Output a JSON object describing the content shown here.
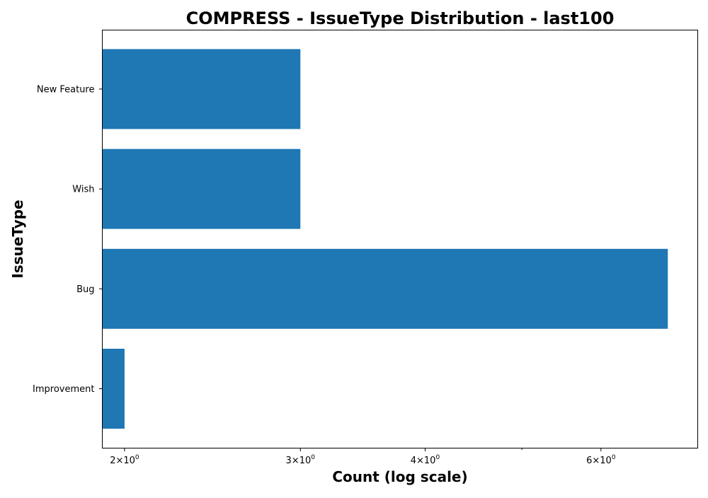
{
  "chart_data": {
    "type": "bar",
    "orientation": "horizontal",
    "title": "COMPRESS - IssueType Distribution - last100",
    "xlabel": "Count (log scale)",
    "ylabel": "IssueType",
    "x_scale": "log",
    "xlim": [
      1.9,
      7.5
    ],
    "x_major_ticks": [
      {
        "value": 2,
        "base": "2",
        "exponent": "0"
      },
      {
        "value": 3,
        "base": "3",
        "exponent": "0"
      },
      {
        "value": 4,
        "base": "4",
        "exponent": "0"
      },
      {
        "value": 6,
        "base": "6",
        "exponent": "0"
      }
    ],
    "x_minor_ticks": [
      5
    ],
    "categories": [
      "Improvement",
      "Bug",
      "Wish",
      "New Feature"
    ],
    "values": [
      2,
      7,
      3,
      3
    ],
    "grid": false,
    "bar_color": "#1f77b4"
  }
}
